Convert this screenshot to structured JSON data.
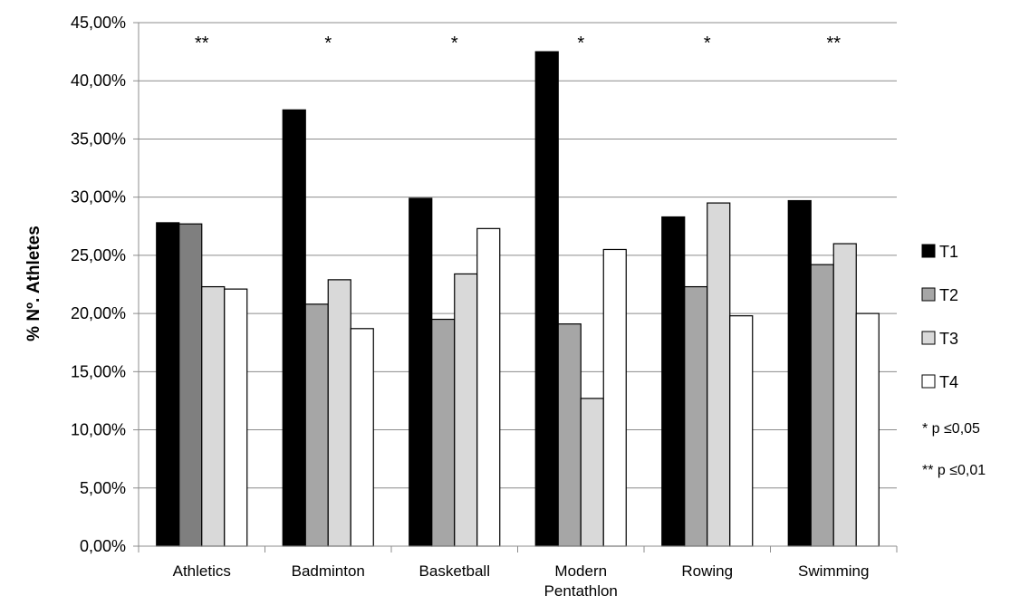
{
  "chart_data": {
    "type": "bar",
    "ylabel": "% Nº. Athletes",
    "xlabel": "",
    "ylim": [
      0,
      0.45
    ],
    "yticks": [
      0,
      0.05,
      0.1,
      0.15,
      0.2,
      0.25,
      0.3,
      0.35,
      0.4,
      0.45
    ],
    "ytick_labels": [
      "0,00%",
      "5,00%",
      "10,00%",
      "15,00%",
      "20,00%",
      "25,00%",
      "30,00%",
      "35,00%",
      "40,00%",
      "45,00%"
    ],
    "grid": true,
    "legend_position": "right",
    "categories": [
      [
        "Athletics"
      ],
      [
        "Badminton"
      ],
      [
        "Basketball"
      ],
      [
        "Modern",
        "Pentathlon"
      ],
      [
        "Rowing"
      ],
      [
        "Swimming"
      ]
    ],
    "significance": [
      "**",
      "*",
      "*",
      "*",
      "*",
      "**"
    ],
    "series": [
      {
        "name": "T1",
        "color": "#000000",
        "values": [
          0.278,
          0.375,
          0.299,
          0.425,
          0.283,
          0.297
        ]
      },
      {
        "name": "T2",
        "color": "#a6a6a6",
        "values": [
          0.277,
          0.208,
          0.195,
          0.191,
          0.223,
          0.242
        ]
      },
      {
        "name": "T3",
        "color": "#d9d9d9",
        "values": [
          0.223,
          0.229,
          0.234,
          0.127,
          0.295,
          0.26
        ]
      },
      {
        "name": "T4",
        "color": "#ffffff",
        "values": [
          0.221,
          0.187,
          0.273,
          0.255,
          0.198,
          0.2
        ]
      }
    ],
    "bar_color_overrides": [
      {
        "series": 1,
        "category": 0,
        "color": "#7f7f7f"
      }
    ],
    "notes": [
      "* p ≤0,05",
      "** p ≤0,01"
    ]
  }
}
